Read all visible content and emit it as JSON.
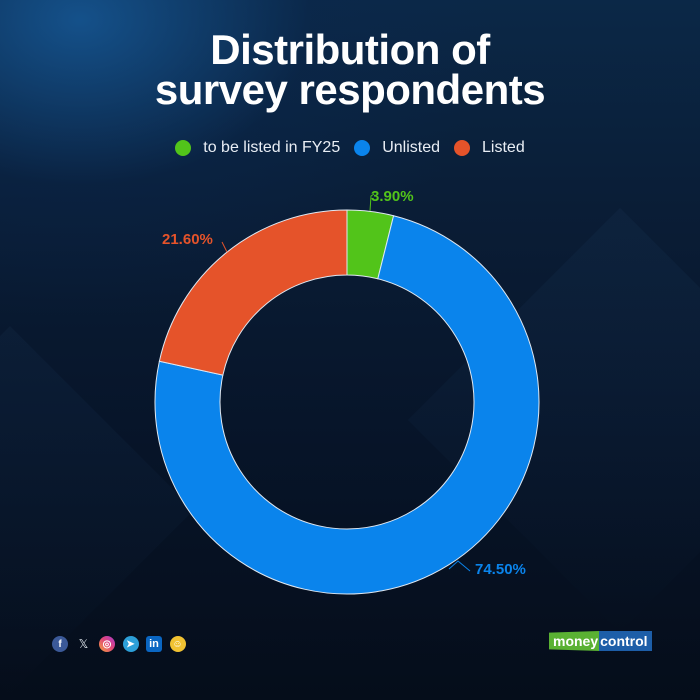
{
  "title": {
    "line1": "Distribution of",
    "line2": "survey respondents"
  },
  "legend": [
    {
      "label": "to be listed in FY25",
      "color": "#52c41a"
    },
    {
      "label": "Unlisted",
      "color": "#0a84ec"
    },
    {
      "label": "Listed",
      "color": "#e5532a"
    }
  ],
  "labels": {
    "to_be_listed": "3.90%",
    "unlisted": "74.50%",
    "listed": "21.60%"
  },
  "colors": {
    "to_be_listed": "#52c41a",
    "unlisted": "#0a84ec",
    "listed": "#e5532a",
    "background": "#07152a",
    "title": "#ffffff"
  },
  "footer": {
    "socials": [
      {
        "name": "facebook",
        "glyph": "f"
      },
      {
        "name": "x",
        "glyph": "𝕏"
      },
      {
        "name": "instagram",
        "glyph": "◎"
      },
      {
        "name": "telegram",
        "glyph": "➤"
      },
      {
        "name": "linkedin",
        "glyph": "in"
      },
      {
        "name": "snapchat",
        "glyph": "☺"
      }
    ],
    "brand_part1": "money",
    "brand_part2": "control"
  },
  "chart_data": {
    "type": "pie",
    "subtype": "donut",
    "title": "Distribution of survey respondents",
    "categories": [
      "to be listed in FY25",
      "Unlisted",
      "Listed"
    ],
    "values": [
      3.9,
      74.5,
      21.6
    ],
    "value_labels": [
      "3.90%",
      "74.50%",
      "21.60%"
    ],
    "colors": [
      "#52c41a",
      "#0a84ec",
      "#e5532a"
    ],
    "start_angle": "12 o'clock, clockwise",
    "legend_position": "top",
    "unit": "%"
  }
}
